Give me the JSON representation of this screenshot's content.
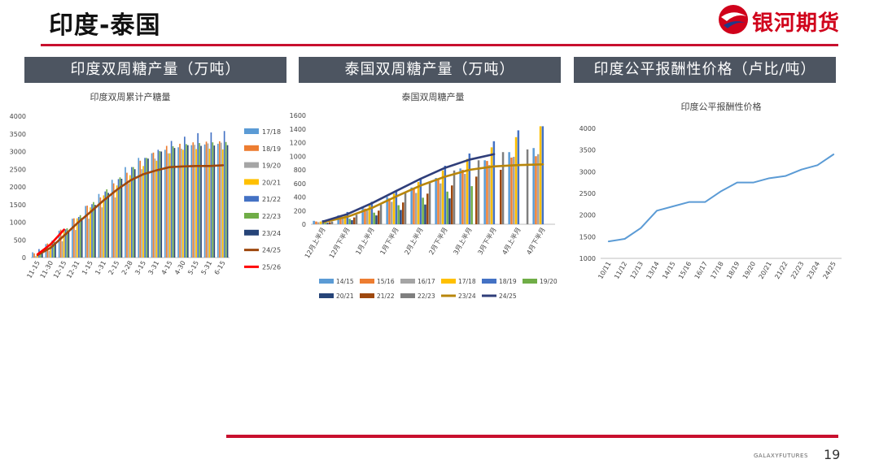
{
  "slide": {
    "title": "印度-泰国",
    "logo_text": "银河期货",
    "footer_brand": "GALAXYFUTURES",
    "page_number": "19"
  },
  "colors": {
    "accent_red": "#c8102e",
    "header_bg": "#4d5561"
  },
  "panels": [
    {
      "header": "印度双周糖产量（万吨）"
    },
    {
      "header": "泰国双周糖产量（万吨）"
    },
    {
      "header": "印度公平报酬性价格（卢比/吨）"
    }
  ],
  "chart_data": [
    {
      "type": "bar",
      "title": "印度双周累计产糖量",
      "categories": [
        "11-15",
        "11-30",
        "12-15",
        "12-31",
        "1-15",
        "1-31",
        "2-15",
        "2-28",
        "3-15",
        "3-31",
        "4-15",
        "4-30",
        "5-15",
        "5-31",
        "6-15"
      ],
      "ylim": [
        0,
        4000
      ],
      "yticks": [
        0,
        500,
        1000,
        1500,
        2000,
        2500,
        3000,
        3500,
        4000
      ],
      "legend_position": "right",
      "series": [
        {
          "name": "17/18",
          "type": "bar",
          "color": "#5b9bd5",
          "values": [
            150,
            380,
            760,
            1100,
            1460,
            1800,
            2200,
            2560,
            2820,
            2950,
            3050,
            3120,
            3180,
            3200,
            3220
          ]
        },
        {
          "name": "18/19",
          "type": "bar",
          "color": "#ed7d31",
          "values": [
            120,
            400,
            790,
            1110,
            1470,
            1700,
            2100,
            2400,
            2740,
            2970,
            3160,
            3220,
            3260,
            3280,
            3290
          ]
        },
        {
          "name": "19/20",
          "type": "bar",
          "color": "#a5a5a5",
          "values": [
            40,
            190,
            460,
            780,
            1100,
            1420,
            1700,
            2100,
            2500,
            2800,
            2950,
            3080,
            3190,
            3230,
            3250
          ]
        },
        {
          "name": "20/21",
          "type": "bar",
          "color": "#ffc000",
          "values": [
            100,
            420,
            800,
            1110,
            1420,
            1760,
            2040,
            2330,
            2590,
            2740,
            2950,
            3050,
            3070,
            3080,
            3060
          ]
        },
        {
          "name": "21/22",
          "type": "bar",
          "color": "#4472c4",
          "values": [
            240,
            480,
            800,
            1150,
            1510,
            1870,
            2220,
            2560,
            2820,
            3050,
            3300,
            3420,
            3520,
            3540,
            3580
          ]
        },
        {
          "name": "22/23",
          "type": "bar",
          "color": "#70ad47",
          "values": [
            180,
            480,
            830,
            1200,
            1570,
            1930,
            2270,
            2560,
            2820,
            3010,
            3150,
            3210,
            3240,
            3260,
            3270
          ]
        },
        {
          "name": "23/24",
          "type": "bar",
          "color": "#264478",
          "values": [
            180,
            440,
            740,
            1120,
            1490,
            1830,
            2230,
            2500,
            2800,
            3000,
            3100,
            3180,
            3160,
            3170,
            3180
          ]
        },
        {
          "name": "24/25",
          "type": "line",
          "color": "#9e480e",
          "values": [
            70,
            280,
            620,
            970,
            1290,
            1620,
            1920,
            2180,
            2360,
            2470,
            2560,
            2580,
            2590,
            2590,
            2610
          ]
        },
        {
          "name": "25/26",
          "type": "line",
          "color": "#ff0000",
          "values": [
            90,
            380,
            790,
            null,
            null,
            null,
            null,
            null,
            null,
            null,
            null,
            null,
            null,
            null,
            null
          ]
        }
      ]
    },
    {
      "type": "bar",
      "title": "泰国双周糖产量",
      "categories": [
        "12月上半月",
        "12月下半月",
        "1月上半月",
        "1月下半月",
        "2月上半月",
        "2月下半月",
        "3月上半月",
        "3月下半月",
        "4月上半月",
        "4月下半月"
      ],
      "ylim": [
        0,
        1600
      ],
      "yticks": [
        0,
        200,
        400,
        600,
        800,
        1000,
        1200,
        1400,
        1600
      ],
      "legend_position": "bottom",
      "series": [
        {
          "name": "14/15",
          "type": "bar",
          "color": "#5b9bd5",
          "values": [
            50,
            130,
            250,
            400,
            540,
            680,
            820,
            940,
            1060,
            1120
          ]
        },
        {
          "name": "15/16",
          "type": "bar",
          "color": "#ed7d31",
          "values": [
            40,
            120,
            230,
            380,
            520,
            650,
            800,
            930,
            980,
            1000
          ]
        },
        {
          "name": "16/17",
          "type": "bar",
          "color": "#a5a5a5",
          "values": [
            30,
            100,
            200,
            330,
            460,
            600,
            740,
            870,
            990,
            1030
          ]
        },
        {
          "name": "17/18",
          "type": "bar",
          "color": "#ffc000",
          "values": [
            40,
            140,
            280,
            450,
            620,
            790,
            960,
            1130,
            1280,
            1440
          ]
        },
        {
          "name": "18/19",
          "type": "bar",
          "color": "#4472c4",
          "values": [
            60,
            180,
            330,
            500,
            680,
            860,
            1040,
            1220,
            1380,
            1440
          ]
        },
        {
          "name": "19/20",
          "type": "bar",
          "color": "#70ad47",
          "values": [
            20,
            80,
            170,
            280,
            390,
            480,
            560,
            null,
            null,
            null
          ]
        },
        {
          "name": "20/21",
          "type": "bar",
          "color": "#264478",
          "values": [
            20,
            60,
            130,
            210,
            290,
            380,
            null,
            null,
            null,
            null
          ]
        },
        {
          "name": "21/22",
          "type": "bar",
          "color": "#9e480e",
          "values": [
            30,
            100,
            200,
            320,
            450,
            570,
            700,
            800,
            null,
            null
          ]
        },
        {
          "name": "22/23",
          "type": "bar",
          "color": "#7f7f7f",
          "values": [
            40,
            140,
            290,
            460,
            630,
            790,
            940,
            1060,
            1100,
            null
          ]
        },
        {
          "name": "23/24",
          "type": "line",
          "color": "#b8860b",
          "values": [
            30,
            110,
            240,
            410,
            570,
            700,
            800,
            850,
            870,
            880
          ]
        },
        {
          "name": "24/25",
          "type": "line",
          "color": "#2f3e7a",
          "values": [
            40,
            150,
            310,
            490,
            670,
            830,
            950,
            1030,
            null,
            null
          ]
        }
      ]
    },
    {
      "type": "line",
      "title": "印度公平报酬性价格",
      "categories": [
        "10/11",
        "11/12",
        "12/13",
        "13/14",
        "14/15",
        "15/16",
        "16/17",
        "17/18",
        "18/19",
        "19/20",
        "20/21",
        "21/22",
        "22/23",
        "23/24",
        "24/25"
      ],
      "ylim": [
        1000,
        4000
      ],
      "yticks": [
        1000,
        1500,
        2000,
        2500,
        3000,
        3500,
        4000
      ],
      "series": [
        {
          "name": "",
          "type": "line",
          "color": "#5b9bd5",
          "values": [
            1391,
            1450,
            1700,
            2100,
            2200,
            2300,
            2300,
            2550,
            2750,
            2750,
            2850,
            2900,
            3050,
            3150,
            3400
          ]
        }
      ]
    }
  ]
}
